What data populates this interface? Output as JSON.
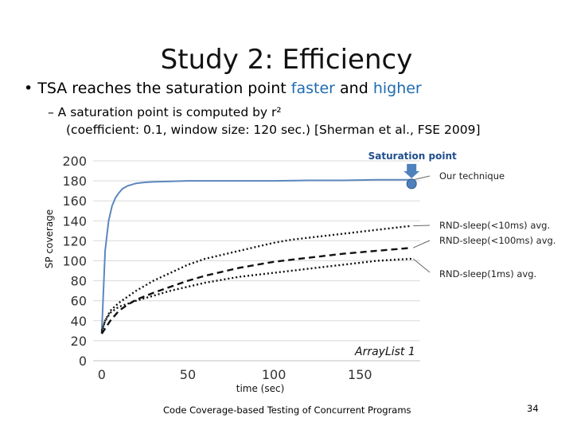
{
  "slide": {
    "title": "Study 2: Efficiency",
    "bullet_prefix": "• TSA reaches the saturation point ",
    "bullet_faster": "faster",
    "bullet_and": " and ",
    "bullet_higher": "higher",
    "sub_line1": "– A saturation point is computed by r²",
    "sub_line2": "(coefficient: 0.1, window size: 120 sec.) [Sherman et al., FSE 2009]",
    "footer": "Code Coverage-based Testing of Concurrent Programs",
    "page_number": "34",
    "highlight_color": "#1f6bb0"
  },
  "chart_data": {
    "type": "line",
    "xlabel": "time (sec)",
    "ylabel": "SP coverage",
    "xlim": [
      -5,
      185
    ],
    "ylim": [
      0,
      200
    ],
    "xticks": [
      0,
      50,
      100,
      150
    ],
    "yticks": [
      0,
      20,
      40,
      60,
      80,
      100,
      120,
      140,
      160,
      180,
      200
    ],
    "grid": "horizontal",
    "series": [
      {
        "name": "Our technique",
        "style": "solid",
        "color": "#5b87bf",
        "x": [
          0,
          1,
          2,
          4,
          6,
          8,
          10,
          12,
          15,
          20,
          25,
          30,
          40,
          50,
          60,
          80,
          100,
          120,
          140,
          160,
          180
        ],
        "y": [
          28,
          70,
          110,
          140,
          155,
          163,
          168,
          172,
          175,
          177.5,
          178.5,
          179,
          179.5,
          180,
          180,
          180,
          180,
          180.5,
          180.5,
          181,
          181
        ]
      },
      {
        "name": "RND-sleep(<10ms) avg.",
        "style": "dotted",
        "color": "#111111",
        "x": [
          0,
          2,
          5,
          10,
          15,
          20,
          25,
          30,
          40,
          50,
          60,
          70,
          80,
          90,
          100,
          110,
          120,
          130,
          140,
          150,
          160,
          170,
          180
        ],
        "y": [
          28,
          40,
          50,
          58,
          64,
          70,
          75,
          80,
          88,
          96,
          102,
          106,
          110,
          114,
          118,
          121,
          123,
          125,
          127,
          129,
          131,
          133,
          135
        ]
      },
      {
        "name": "RND-sleep(<100ms) avg.",
        "style": "dashed",
        "color": "#111111",
        "x": [
          0,
          5,
          10,
          15,
          20,
          30,
          40,
          50,
          60,
          70,
          80,
          90,
          100,
          110,
          120,
          130,
          140,
          150,
          160,
          170,
          180
        ],
        "y": [
          27,
          40,
          50,
          56,
          61,
          68,
          74,
          80,
          85,
          89,
          93,
          96,
          99,
          101,
          103,
          105,
          107,
          108.5,
          110,
          111.5,
          113
        ]
      },
      {
        "name": "RND-sleep(1ms) avg.",
        "style": "dotted",
        "color": "#111111",
        "x": [
          0,
          2,
          5,
          10,
          15,
          20,
          30,
          40,
          50,
          60,
          70,
          80,
          90,
          100,
          110,
          120,
          130,
          140,
          150,
          160,
          170,
          180
        ],
        "y": [
          30,
          40,
          48,
          54,
          57,
          60,
          65,
          70,
          74,
          78,
          81,
          84,
          86,
          88,
          90,
          92,
          94,
          96,
          98,
          100,
          101,
          102
        ]
      }
    ],
    "annotations": {
      "saturation_point": "Saturation point",
      "saturation_x": 180,
      "saturation_y": 181,
      "marker_color": "#4f81bd",
      "inset_label": "ArrayList 1"
    }
  }
}
